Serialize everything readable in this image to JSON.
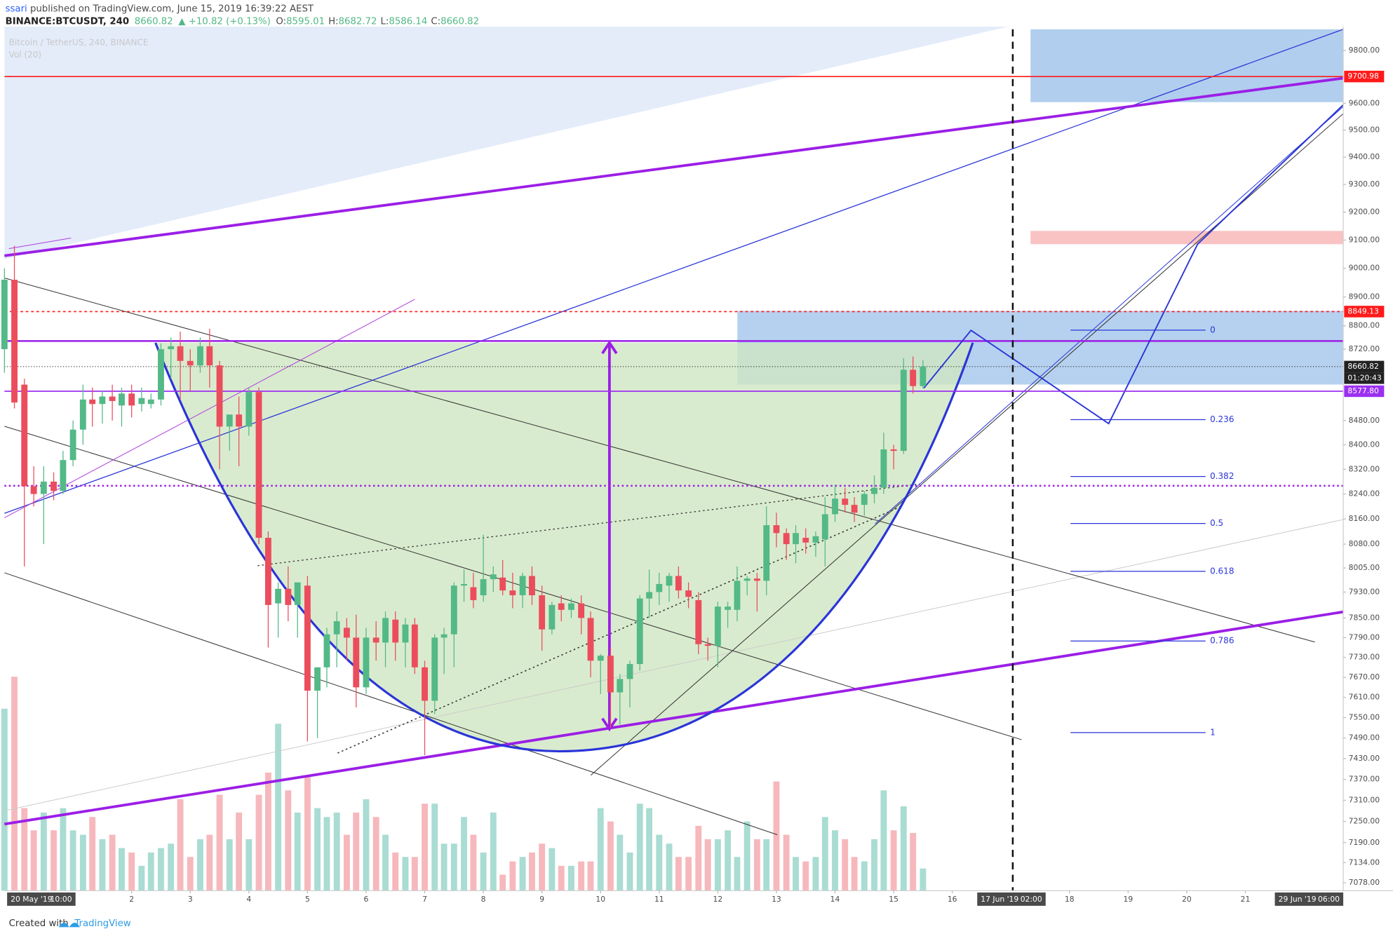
{
  "header": {
    "author": "ssari",
    "published": " published on TradingView.com, June 15, 2019 16:39:22 AEST",
    "symbol": "BINANCE:BTCUSDT, 240",
    "change": "▲ +10.82 (+0.13%)",
    "o": "O:",
    "h": "H:",
    "l": "L:",
    "c": "C:"
  },
  "footer": {
    "created": "Created with",
    "brand": "TradingView"
  },
  "chart_data": {
    "type": "candlestick",
    "series_title": "Bitcoin / TetherUS, 240, BINANCE",
    "volume_title": "Vol (20)",
    "countdown": "01:20:43",
    "up_color": "#53b987",
    "down_color": "#eb4d5c",
    "volume_up_color": "#a9dcd2",
    "volume_down_color": "#f6b8bc",
    "log_scale": true,
    "grid": false,
    "xlim": [
      -0.17,
      22.67
    ],
    "ylim": [
      7056,
      9892
    ],
    "vlim": [
      0,
      300
    ],
    "xticks": [
      2,
      3,
      4,
      5,
      6,
      7,
      8,
      9,
      10,
      11,
      12,
      13,
      14,
      15,
      16,
      18,
      19,
      20,
      21
    ],
    "yticks": [
      {
        "value": 9800,
        "label": "9800.00"
      },
      {
        "value": 9600,
        "label": "9600.00"
      },
      {
        "value": 9500,
        "label": "9500.00"
      },
      {
        "value": 9400,
        "label": "9400.00"
      },
      {
        "value": 9300,
        "label": "9300.00"
      },
      {
        "value": 9200,
        "label": "9200.00"
      },
      {
        "value": 9100,
        "label": "9100.00"
      },
      {
        "value": 9000,
        "label": "9000.00"
      },
      {
        "value": 8900,
        "label": "8900.00"
      },
      {
        "value": 8800,
        "label": "8800.00"
      },
      {
        "value": 8720,
        "label": "8720.00"
      },
      {
        "value": 8480,
        "label": "8480.00"
      },
      {
        "value": 8400,
        "label": "8400.00"
      },
      {
        "value": 8320,
        "label": "8320.00"
      },
      {
        "value": 8240,
        "label": "8240.00"
      },
      {
        "value": 8160,
        "label": "8160.00"
      },
      {
        "value": 8080,
        "label": "8080.00"
      },
      {
        "value": 8005,
        "label": "8005.00"
      },
      {
        "value": 7930,
        "label": "7930.00"
      },
      {
        "value": 7850,
        "label": "7850.00"
      },
      {
        "value": 7790,
        "label": "7790.00"
      },
      {
        "value": 7730,
        "label": "7730.00"
      },
      {
        "value": 7670,
        "label": "7670.00"
      },
      {
        "value": 7610,
        "label": "7610.00"
      },
      {
        "value": 7550,
        "label": "7550.00"
      },
      {
        "value": 7490,
        "label": "7490.00"
      },
      {
        "value": 7430,
        "label": "7430.00"
      },
      {
        "value": 7370,
        "label": "7370.00"
      },
      {
        "value": 7310,
        "label": "7310.00"
      },
      {
        "value": 7250,
        "label": "7250.00"
      },
      {
        "value": 7190,
        "label": "7190.00"
      },
      {
        "value": 7134,
        "label": "7134.00"
      },
      {
        "value": 7078,
        "label": "7078.00"
      }
    ],
    "date_markers": [
      {
        "date": "20 May '19",
        "time": "10:00"
      },
      {
        "date": "17 Jun '19",
        "time": "02:00"
      },
      {
        "date": "29 Jun '19",
        "time": "06:00"
      }
    ],
    "price_lines": [
      {
        "value": 9700.98,
        "color": "#ff1a1a",
        "dashed": false
      },
      {
        "value": 8849.13,
        "color": "#ff1a1a",
        "dashed": true
      },
      {
        "value": 8577.8,
        "label": "8577.80",
        "color": "#9b30f0",
        "dashed": false
      }
    ],
    "fibonacci": {
      "high": 8785,
      "low": 7506,
      "color": "#2a35d8",
      "levels": [
        0,
        0.236,
        0.382,
        0.5,
        0.618,
        0.786,
        1
      ]
    },
    "candles": {
      "x": [
        -0.17,
        0,
        0.17,
        0.33,
        0.5,
        0.67,
        0.83,
        1,
        1.17,
        1.33,
        1.5,
        1.67,
        1.83,
        2,
        2.17,
        2.33,
        2.5,
        2.67,
        2.83,
        3,
        3.17,
        3.33,
        3.5,
        3.67,
        3.83,
        4,
        4.17,
        4.33,
        4.5,
        4.67,
        4.83,
        5,
        5.17,
        5.33,
        5.5,
        5.67,
        5.83,
        6,
        6.17,
        6.33,
        6.5,
        6.67,
        6.83,
        7,
        7.17,
        7.33,
        7.5,
        7.67,
        7.83,
        8,
        8.17,
        8.33,
        8.5,
        8.67,
        8.83,
        9,
        9.17,
        9.33,
        9.5,
        9.67,
        9.83,
        10,
        10.17,
        10.33,
        10.5,
        10.67,
        10.83,
        11,
        11.17,
        11.33,
        11.5,
        11.67,
        11.83,
        12,
        12.17,
        12.33,
        12.5,
        12.67,
        12.83,
        13,
        13.17,
        13.33,
        13.5,
        13.67,
        13.83,
        14,
        14.17,
        14.33,
        14.5,
        14.67,
        14.83,
        15,
        15.17,
        15.33,
        15.5
      ],
      "open": [
        8720,
        8960,
        8600,
        8265,
        8240,
        8280,
        8250,
        8350,
        8450,
        8550,
        8535,
        8560,
        8530,
        8570,
        8535,
        8535,
        8550,
        8720,
        8730,
        8680,
        8665,
        8730,
        8665,
        8460,
        8500,
        8460,
        8575,
        8100,
        7895,
        7940,
        7890,
        7950,
        7630,
        7700,
        7800,
        7820,
        7790,
        7640,
        7790,
        7775,
        7845,
        7775,
        7830,
        7700,
        7600,
        7790,
        7800,
        7950,
        7945,
        7920,
        7970,
        7975,
        7935,
        7920,
        7980,
        7920,
        7815,
        7895,
        7875,
        7895,
        7850,
        7720,
        7735,
        7625,
        7665,
        7710,
        7910,
        7930,
        7950,
        7980,
        7935,
        7905,
        7770,
        7765,
        7875,
        7875,
        7965,
        7972,
        7965,
        8140,
        8115,
        8080,
        8100,
        8085,
        8095,
        8175,
        8225,
        8205,
        8205,
        8240,
        8260,
        8385,
        8380,
        8650,
        8595.01
      ],
      "high": [
        9000,
        9080,
        8620,
        8330,
        8330,
        8310,
        8380,
        8480,
        8600,
        8590,
        8580,
        8600,
        8590,
        8600,
        8590,
        8570,
        8740,
        8760,
        8780,
        8720,
        8760,
        8790,
        8680,
        8500,
        8560,
        8590,
        8590,
        8120,
        7960,
        8010,
        7960,
        7980,
        7700,
        7820,
        7870,
        7850,
        7860,
        7820,
        7840,
        7870,
        7870,
        7850,
        7850,
        7720,
        7800,
        7820,
        7960,
        8000,
        7990,
        8110,
        8010,
        8030,
        7990,
        7990,
        8010,
        7950,
        7900,
        7920,
        7910,
        7920,
        7870,
        7740,
        7760,
        7680,
        7720,
        7920,
        8000,
        7990,
        7990,
        8010,
        7960,
        7930,
        7790,
        7900,
        7900,
        8010,
        7980,
        7990,
        8200,
        8180,
        8130,
        8140,
        8130,
        8120,
        8230,
        8270,
        8260,
        8230,
        8250,
        8300,
        8440,
        8400,
        8690,
        8695,
        8682.72
      ],
      "low": [
        8640,
        8520,
        8010,
        8200,
        8080,
        8220,
        8240,
        8330,
        8400,
        8460,
        8470,
        8480,
        8460,
        8490,
        8510,
        8520,
        8530,
        8620,
        8550,
        8580,
        8640,
        8590,
        8320,
        8380,
        8330,
        8430,
        8080,
        7760,
        7790,
        7840,
        7790,
        7480,
        7490,
        7640,
        7700,
        7720,
        7580,
        7620,
        7720,
        7700,
        7720,
        7700,
        7680,
        7440,
        7560,
        7680,
        7700,
        7900,
        7880,
        7900,
        7930,
        7920,
        7880,
        7880,
        7890,
        7750,
        7800,
        7840,
        7850,
        7800,
        7670,
        7620,
        7520,
        7530,
        7580,
        7690,
        7850,
        7890,
        7900,
        7910,
        7880,
        7740,
        7720,
        7700,
        7820,
        7840,
        7920,
        7870,
        7920,
        8070,
        8030,
        8020,
        8050,
        8040,
        8010,
        8150,
        8180,
        8150,
        8170,
        8210,
        8240,
        8320,
        8370,
        8570,
        8586.14
      ],
      "close": [
        8960,
        8540,
        8265,
        8240,
        8280,
        8250,
        8350,
        8450,
        8550,
        8535,
        8560,
        8545,
        8570,
        8530,
        8555,
        8550,
        8720,
        8730,
        8680,
        8665,
        8730,
        8665,
        8460,
        8500,
        8460,
        8575,
        8100,
        7890,
        7940,
        7890,
        7960,
        7630,
        7700,
        7800,
        7840,
        7790,
        7640,
        7790,
        7775,
        7850,
        7775,
        7830,
        7700,
        7600,
        7790,
        7800,
        7950,
        7955,
        7905,
        7970,
        7985,
        7935,
        7920,
        7980,
        7920,
        7815,
        7890,
        7875,
        7895,
        7850,
        7720,
        7735,
        7625,
        7665,
        7710,
        7910,
        7930,
        7955,
        7980,
        7935,
        7915,
        7770,
        7765,
        7885,
        7885,
        7965,
        7972,
        7965,
        8140,
        8115,
        8080,
        8115,
        8085,
        8105,
        8175,
        8225,
        8205,
        8180,
        8240,
        8260,
        8385,
        8380,
        8650,
        8595,
        8660.82
      ],
      "volume": [
        205,
        241,
        93,
        68,
        88,
        68,
        93,
        68,
        63,
        83,
        58,
        63,
        48,
        43,
        28,
        43,
        48,
        53,
        103,
        38,
        58,
        63,
        108,
        58,
        88,
        58,
        108,
        133,
        188,
        113,
        88,
        128,
        93,
        83,
        88,
        63,
        88,
        103,
        83,
        63,
        43,
        38,
        38,
        98,
        98,
        53,
        53,
        83,
        63,
        43,
        88,
        18,
        33,
        38,
        43,
        53,
        48,
        28,
        28,
        33,
        33,
        93,
        78,
        63,
        43,
        98,
        93,
        63,
        53,
        38,
        38,
        73,
        58,
        58,
        68,
        38,
        78,
        58,
        58,
        123,
        63,
        38,
        33,
        38,
        83,
        68,
        58,
        38,
        33,
        58,
        113,
        68,
        95,
        65,
        25
      ]
    }
  }
}
